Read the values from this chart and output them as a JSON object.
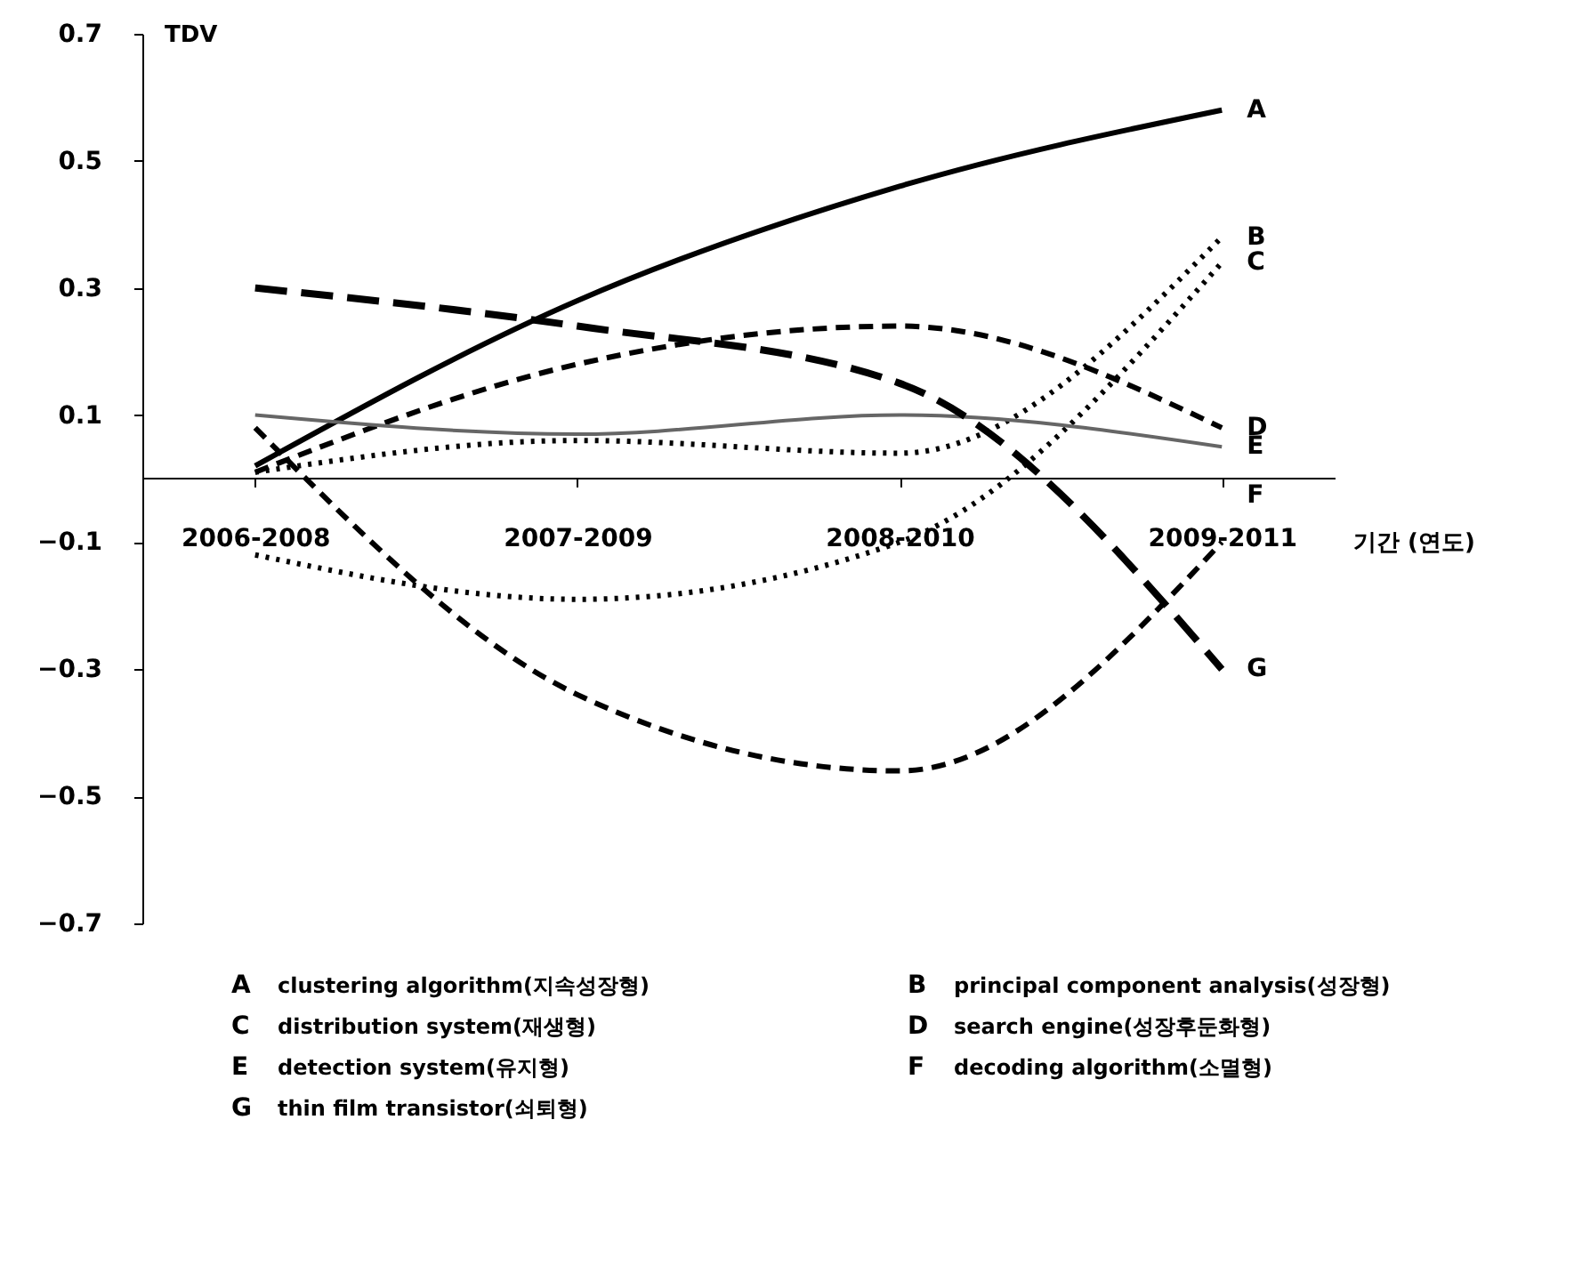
{
  "chart_data": {
    "type": "line",
    "ylabel": "TDV",
    "xlabel": "기간 (연도)",
    "categories": [
      "2006-2008",
      "2007-2009",
      "2008-2010",
      "2009-2011"
    ],
    "ylim": [
      -0.7,
      0.7
    ],
    "yticks": [
      -0.7,
      -0.5,
      -0.3,
      -0.1,
      0.1,
      0.3,
      0.5,
      0.7
    ],
    "series": [
      {
        "name": "A",
        "color": "#000000",
        "line_style": "solid",
        "values": [
          0.02,
          0.28,
          0.46,
          0.58
        ]
      },
      {
        "name": "B",
        "color": "#000000",
        "line_style": "dotted",
        "values": [
          0.01,
          0.06,
          0.04,
          0.38
        ]
      },
      {
        "name": "C",
        "color": "#000000",
        "line_style": "dotted",
        "values": [
          -0.12,
          -0.19,
          -0.1,
          0.34
        ]
      },
      {
        "name": "D",
        "color": "#000000",
        "line_style": "dashed",
        "values": [
          0.01,
          0.18,
          0.24,
          0.08
        ]
      },
      {
        "name": "E",
        "color": "#666666",
        "line_style": "solid",
        "values": [
          0.1,
          0.07,
          0.1,
          0.05
        ]
      },
      {
        "name": "F",
        "color": "#000000",
        "line_style": "dashed",
        "values": [
          0.08,
          -0.34,
          -0.46,
          -0.1
        ]
      },
      {
        "name": "G",
        "color": "#000000",
        "line_style": "longdash",
        "values": [
          0.3,
          0.24,
          0.15,
          -0.3
        ]
      }
    ],
    "annotations": [
      "clustering algorithm(지속성장형)",
      "principal component analysis(성장형)",
      "distribution system(재생형)",
      "search engine(성장후둔화형)",
      "detection system(유지형)",
      "decoding algorithm(소멸형)",
      "thin film transistor(쇠퇴형)"
    ]
  }
}
